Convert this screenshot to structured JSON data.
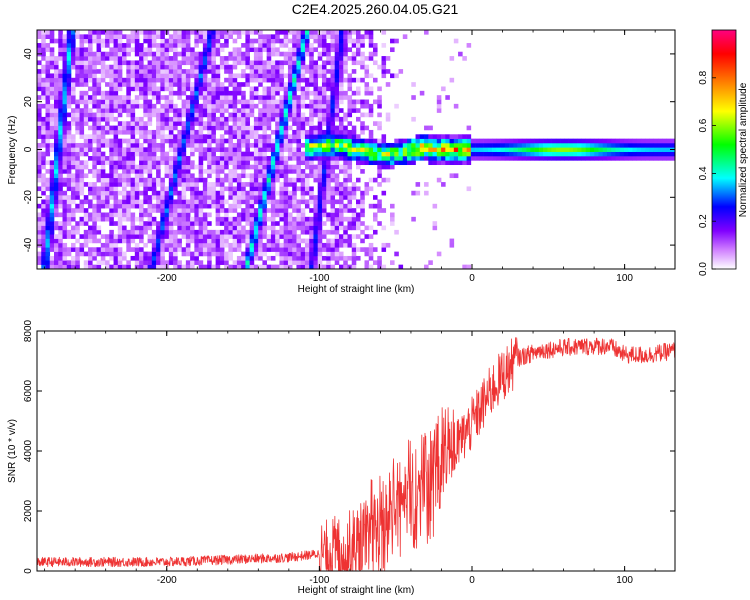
{
  "title": "C2E4.2025.260.04.05.G21",
  "chart_data": [
    {
      "type": "heatmap",
      "name": "spectrogram",
      "xlabel": "Height of straight line (km)",
      "ylabel": "Frequency (Hz)",
      "xlim": [
        -285,
        133
      ],
      "ylim": [
        -50,
        50
      ],
      "xticks": [
        -200,
        -100,
        0,
        100
      ],
      "yticks": [
        -40,
        -20,
        0,
        20,
        40
      ],
      "colorbar": {
        "label": "Normalized spectral amplitude",
        "range": [
          0,
          1
        ],
        "ticks": [
          "0.0",
          "0.2",
          "0.4",
          "0.6",
          "0.8"
        ],
        "tick_values": [
          0,
          0.2,
          0.4,
          0.6,
          0.8
        ],
        "colormap": [
          "#ffffff",
          "#d080ff",
          "#8000ff",
          "#0000ff",
          "#00ffff",
          "#00ff00",
          "#ffff00",
          "#ff8000",
          "#ff0000",
          "#ff0080"
        ]
      },
      "features": {
        "noise_region_x": [
          -285,
          -90
        ],
        "signal_band_center_hz": 0,
        "signal_band_halfwidth_hz": 4,
        "signal_start_x": -110,
        "diagonal_streaks": [
          {
            "x_bottom": -280,
            "x_top": -262,
            "intensity": 0.35
          },
          {
            "x_bottom": -210,
            "x_top": -170,
            "intensity": 0.3
          },
          {
            "x_bottom": -148,
            "x_top": -108,
            "intensity": 0.4
          },
          {
            "x_bottom": -105,
            "x_top": -85,
            "intensity": 0.25
          }
        ]
      }
    },
    {
      "type": "line",
      "name": "snr",
      "xlabel": "Height of straight line (km)",
      "ylabel": "SNR (10 * v/v)",
      "xlim": [
        -285,
        133
      ],
      "ylim": [
        0,
        8000
      ],
      "xticks": [
        -200,
        -100,
        0,
        100
      ],
      "yticks": [
        0,
        2000,
        4000,
        6000,
        8000
      ],
      "color": "#ee3333",
      "envelope": {
        "x": [
          -285,
          -200,
          -120,
          -80,
          -60,
          -45,
          -30,
          -15,
          0,
          15,
          30,
          45,
          60,
          80,
          90,
          100,
          115,
          133
        ],
        "y": [
          300,
          300,
          450,
          700,
          1200,
          2200,
          2700,
          3800,
          4900,
          6200,
          7100,
          7350,
          7450,
          7500,
          7500,
          7200,
          7200,
          7350
        ]
      }
    }
  ]
}
